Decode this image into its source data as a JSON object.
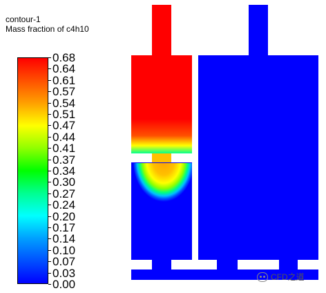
{
  "header": {
    "title": "contour-1",
    "subtitle": "Mass fraction of c4h10"
  },
  "colorbar": {
    "labels": [
      "0.68",
      "0.64",
      "0.61",
      "0.57",
      "0.54",
      "0.51",
      "0.47",
      "0.44",
      "0.41",
      "0.37",
      "0.34",
      "0.30",
      "0.27",
      "0.24",
      "0.20",
      "0.17",
      "0.14",
      "0.10",
      "0.07",
      "0.03",
      "0.00"
    ],
    "min": 0.0,
    "max": 0.68,
    "colors": {
      "low": "#0000ff",
      "mid": "#00ff00",
      "high": "#ff0000"
    }
  },
  "watermark": {
    "text": "CFD之道",
    "icon": "wechat-icon"
  }
}
